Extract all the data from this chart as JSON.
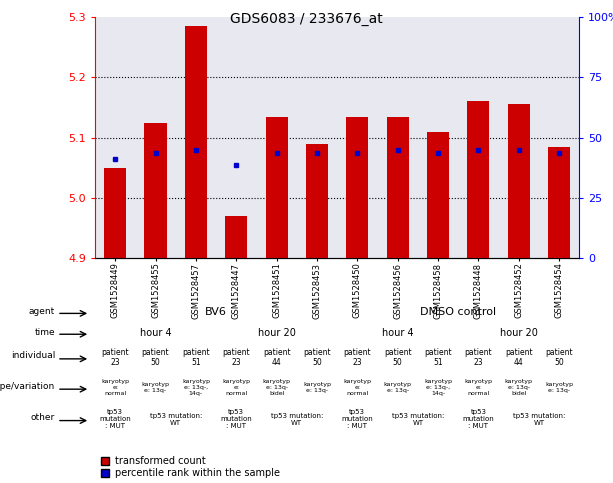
{
  "title": "GDS6083 / 233676_at",
  "samples": [
    "GSM1528449",
    "GSM1528455",
    "GSM1528457",
    "GSM1528447",
    "GSM1528451",
    "GSM1528453",
    "GSM1528450",
    "GSM1528456",
    "GSM1528458",
    "GSM1528448",
    "GSM1528452",
    "GSM1528454"
  ],
  "bar_values": [
    5.05,
    5.125,
    5.285,
    4.97,
    5.135,
    5.09,
    5.135,
    5.135,
    5.11,
    5.16,
    5.155,
    5.085
  ],
  "dot_values": [
    5.065,
    5.075,
    5.08,
    5.055,
    5.075,
    5.075,
    5.075,
    5.08,
    5.075,
    5.08,
    5.08,
    5.075
  ],
  "ymin": 4.9,
  "ymax": 5.3,
  "yticks": [
    4.9,
    5.0,
    5.1,
    5.2,
    5.3
  ],
  "right_yticks": [
    0,
    25,
    50,
    75,
    100
  ],
  "right_yticklabels": [
    "0",
    "25",
    "50",
    "75",
    "100%"
  ],
  "bar_color": "#cc0000",
  "dot_color": "#0000cc",
  "bg_color": "#e8e8f0",
  "agent_groups": [
    {
      "text": "BV6",
      "span": 6,
      "color": "#99ee99"
    },
    {
      "text": "DMSO control",
      "span": 6,
      "color": "#66cc66"
    }
  ],
  "time_groups": [
    {
      "text": "hour 4",
      "span": 3,
      "color": "#aaddff"
    },
    {
      "text": "hour 20",
      "span": 3,
      "color": "#55ccee"
    },
    {
      "text": "hour 4",
      "span": 3,
      "color": "#aaddff"
    },
    {
      "text": "hour 20",
      "span": 3,
      "color": "#55ccee"
    }
  ],
  "individual_cells": [
    {
      "text": "patient\n23",
      "color": "#ddaadd"
    },
    {
      "text": "patient\n50",
      "color": "#cc88cc"
    },
    {
      "text": "patient\n51",
      "color": "#bb66bb"
    },
    {
      "text": "patient\n23",
      "color": "#ddaadd"
    },
    {
      "text": "patient\n44",
      "color": "#cc88cc"
    },
    {
      "text": "patient\n50",
      "color": "#cc88cc"
    },
    {
      "text": "patient\n23",
      "color": "#ddaadd"
    },
    {
      "text": "patient\n50",
      "color": "#cc88cc"
    },
    {
      "text": "patient\n51",
      "color": "#bb66bb"
    },
    {
      "text": "patient\n23",
      "color": "#ddaadd"
    },
    {
      "text": "patient\n44",
      "color": "#cc88cc"
    },
    {
      "text": "patient\n50",
      "color": "#cc88cc"
    }
  ],
  "genotype_cells": [
    {
      "text": "karyotyp\ne:\nnormal",
      "color": "#ddddff"
    },
    {
      "text": "karyotyp\ne: 13q-",
      "color": "#ffaacc"
    },
    {
      "text": "karyotyp\ne: 13q-,\n14q-",
      "color": "#ff88aa"
    },
    {
      "text": "karyotyp\ne:\nnormal",
      "color": "#ddddff"
    },
    {
      "text": "karyotyp\ne: 13q-\nbidel",
      "color": "#ffaacc"
    },
    {
      "text": "karyotyp\ne: 13q-",
      "color": "#ffaacc"
    },
    {
      "text": "karyotyp\ne:\nnormal",
      "color": "#ddddff"
    },
    {
      "text": "karyotyp\ne: 13q-",
      "color": "#ffaacc"
    },
    {
      "text": "karyotyp\ne: 13q-,\n14q-",
      "color": "#ff88aa"
    },
    {
      "text": "karyotyp\ne:\nnormal",
      "color": "#ddddff"
    },
    {
      "text": "karyotyp\ne: 13q-\nbidel",
      "color": "#ffaacc"
    },
    {
      "text": "karyotyp\ne: 13q-",
      "color": "#ffaacc"
    }
  ],
  "other_groups": [
    {
      "text": "tp53\nmutation\n: MUT",
      "span": 1,
      "color": "#ffeeaa"
    },
    {
      "text": "tp53 mutation:\nWT",
      "span": 2,
      "color": "#eeff88"
    },
    {
      "text": "tp53\nmutation\n: MUT",
      "span": 1,
      "color": "#ffeeaa"
    },
    {
      "text": "tp53 mutation:\nWT",
      "span": 2,
      "color": "#eeff88"
    },
    {
      "text": "tp53\nmutation\n: MUT",
      "span": 1,
      "color": "#ffeeaa"
    },
    {
      "text": "tp53 mutation:\nWT",
      "span": 2,
      "color": "#eeff88"
    },
    {
      "text": "tp53\nmutation\n: MUT",
      "span": 1,
      "color": "#ffeeaa"
    },
    {
      "text": "tp53 mutation:\nWT",
      "span": 2,
      "color": "#eeff88"
    }
  ],
  "row_labels": [
    "agent",
    "time",
    "individual",
    "genotype/variation",
    "other"
  ],
  "legend_items": [
    {
      "label": "transformed count",
      "color": "#cc0000"
    },
    {
      "label": "percentile rank within the sample",
      "color": "#0000cc"
    }
  ]
}
